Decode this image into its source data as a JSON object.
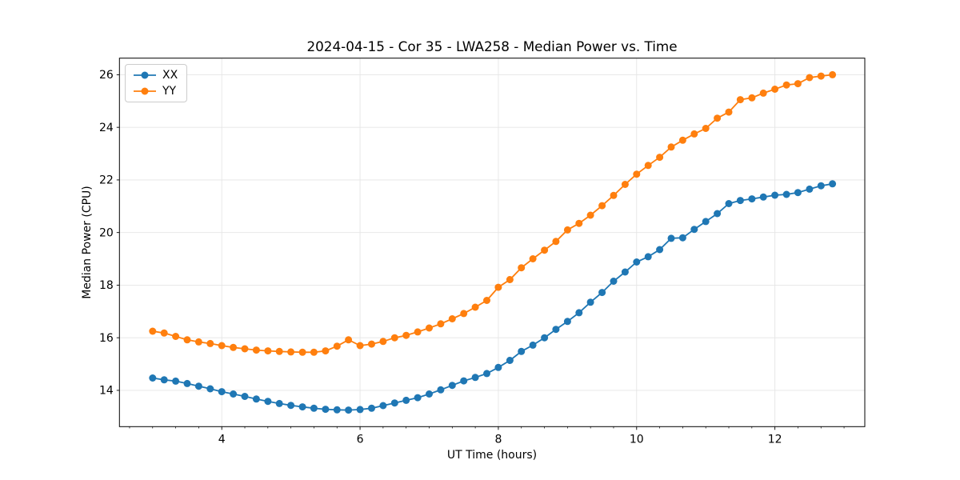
{
  "chart_data": {
    "type": "line",
    "title": "2024-04-15 - Cor 35 - LWA258 - Median Power vs. Time",
    "xlabel": "UT Time (hours)",
    "ylabel": "Median Power (CPU)",
    "xlim": [
      2.52,
      13.3
    ],
    "ylim": [
      12.62,
      26.63
    ],
    "xticks": [
      4,
      6,
      8,
      10,
      12
    ],
    "yticks": [
      14,
      16,
      18,
      20,
      22,
      24,
      26
    ],
    "x_minor_step": 0.33333,
    "grid": true,
    "background": "#ffffff",
    "grid_color": "#e5e5e5",
    "spine_color": "#000000",
    "legend": {
      "position": "upper left"
    },
    "x": [
      3,
      3.167,
      3.333,
      3.5,
      3.667,
      3.833,
      4,
      4.167,
      4.333,
      4.5,
      4.667,
      4.833,
      5,
      5.167,
      5.333,
      5.5,
      5.667,
      5.833,
      6,
      6.167,
      6.333,
      6.5,
      6.667,
      6.833,
      7,
      7.167,
      7.333,
      7.5,
      7.667,
      7.833,
      8,
      8.167,
      8.333,
      8.5,
      8.667,
      8.833,
      9,
      9.167,
      9.333,
      9.5,
      9.667,
      9.833,
      10,
      10.167,
      10.333,
      10.5,
      10.667,
      10.833,
      11,
      11.167,
      11.333,
      11.5,
      11.667,
      11.833,
      12,
      12.167,
      12.333,
      12.5,
      12.667,
      12.833
    ],
    "series": [
      {
        "name": "XX",
        "color": "#1f77b4",
        "values": [
          14.47,
          14.4,
          14.35,
          14.26,
          14.16,
          14.06,
          13.95,
          13.86,
          13.77,
          13.67,
          13.58,
          13.5,
          13.43,
          13.37,
          13.32,
          13.28,
          13.26,
          13.25,
          13.27,
          13.32,
          13.42,
          13.52,
          13.62,
          13.72,
          13.86,
          14.02,
          14.19,
          14.36,
          14.49,
          14.64,
          14.87,
          15.14,
          15.48,
          15.72,
          16.0,
          16.32,
          16.62,
          16.95,
          17.35,
          17.72,
          18.15,
          18.5,
          18.88,
          19.08,
          19.35,
          19.78,
          19.8,
          20.12,
          20.42,
          20.72,
          21.1,
          21.22,
          21.28,
          21.35,
          21.42,
          21.45,
          21.52,
          21.65,
          21.78,
          21.85
        ]
      },
      {
        "name": "YY",
        "color": "#ff7f0e",
        "values": [
          16.25,
          16.18,
          16.05,
          15.92,
          15.84,
          15.78,
          15.7,
          15.63,
          15.58,
          15.53,
          15.5,
          15.48,
          15.46,
          15.45,
          15.45,
          15.5,
          15.68,
          15.92,
          15.7,
          15.76,
          15.86,
          16.0,
          16.09,
          16.22,
          16.37,
          16.53,
          16.72,
          16.92,
          17.16,
          17.42,
          17.92,
          18.21,
          18.66,
          19.0,
          19.33,
          19.66,
          20.1,
          20.35,
          20.66,
          21.02,
          21.41,
          21.83,
          22.22,
          22.55,
          22.86,
          23.25,
          23.51,
          23.75,
          23.96,
          24.35,
          24.58,
          25.05,
          25.12,
          25.3,
          25.45,
          25.61,
          25.66,
          25.89,
          25.95,
          26.0
        ]
      }
    ]
  }
}
